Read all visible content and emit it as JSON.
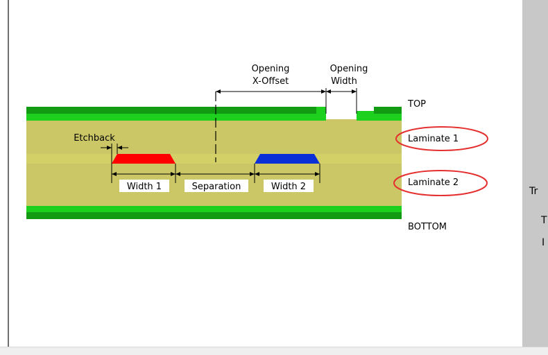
{
  "diagram": {
    "labels": {
      "opening_xoffset_line1": "Opening",
      "opening_xoffset_line2": "X-Offset",
      "opening_width_line1": "Opening",
      "opening_width_line2": "Width",
      "etchback": "Etchback",
      "width1": "Width 1",
      "separation": "Separation",
      "width2": "Width 2"
    },
    "layers": {
      "top": "TOP",
      "laminate1": "Laminate 1",
      "laminate2": "Laminate 2",
      "bottom": "BOTTOM"
    },
    "colors": {
      "copper_plane": "#16b916",
      "dark_green": "#139a13",
      "laminate": "#cbc766",
      "trace1": "#ff0000",
      "trace2": "#0b2fd7",
      "highlight_ellipse": "#e53030"
    }
  },
  "right_panel": {
    "fragments": [
      "Tr",
      "T",
      "I"
    ]
  }
}
